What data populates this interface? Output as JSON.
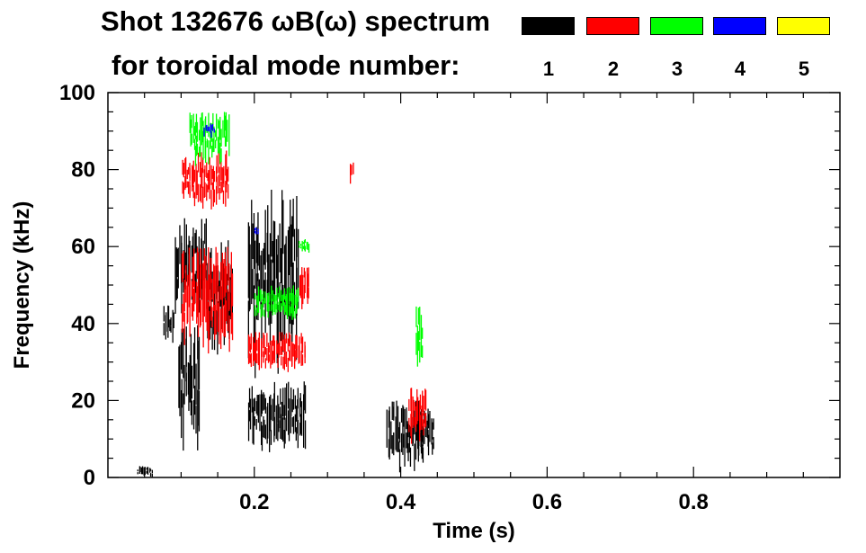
{
  "title": {
    "line1": "Shot 132676 ωB(ω) spectrum",
    "line2": "for toroidal mode number:"
  },
  "legend": [
    {
      "mode": "1",
      "color": "#000000"
    },
    {
      "mode": "2",
      "color": "#ff0000"
    },
    {
      "mode": "3",
      "color": "#00ff00"
    },
    {
      "mode": "4",
      "color": "#0000ff"
    },
    {
      "mode": "5",
      "color": "#ffff00"
    }
  ],
  "chart_data": {
    "type": "scatter",
    "title": "Shot 132676 ωB(ω) spectrum",
    "xlabel": "Time (s)",
    "ylabel": "Frequency (kHz)",
    "xlim": [
      0.0,
      1.0
    ],
    "ylim": [
      0,
      100
    ],
    "xticks": [
      0.2,
      0.4,
      0.6,
      0.8
    ],
    "xtick_labels": [
      "0.2",
      "0.4",
      "0.6",
      "0.8"
    ],
    "yticks": [
      0,
      20,
      40,
      60,
      80,
      100
    ],
    "ytick_labels": [
      "0",
      "20",
      "40",
      "60",
      "80",
      "100"
    ],
    "grid": false,
    "series": [
      {
        "name": "n=1",
        "color": "#000000",
        "regions": [
          {
            "t": [
              0.04,
              0.06
            ],
            "f": [
              0,
              3
            ]
          },
          {
            "t": [
              0.075,
              0.09
            ],
            "f": [
              33,
              45
            ]
          },
          {
            "t": [
              0.09,
              0.135
            ],
            "f": [
              40,
              68
            ]
          },
          {
            "t": [
              0.095,
              0.125
            ],
            "f": [
              5,
              40
            ]
          },
          {
            "t": [
              0.135,
              0.17
            ],
            "f": [
              30,
              62
            ]
          },
          {
            "t": [
              0.19,
              0.27
            ],
            "f": [
              5,
              25
            ]
          },
          {
            "t": [
              0.19,
              0.26
            ],
            "f": [
              25,
              75
            ]
          },
          {
            "t": [
              0.38,
              0.43
            ],
            "f": [
              0,
              20
            ]
          },
          {
            "t": [
              0.42,
              0.445
            ],
            "f": [
              3,
              18
            ]
          }
        ]
      },
      {
        "name": "n=2",
        "color": "#ff0000",
        "regions": [
          {
            "t": [
              0.1,
              0.165
            ],
            "f": [
              68,
              85
            ]
          },
          {
            "t": [
              0.1,
              0.17
            ],
            "f": [
              30,
              60
            ]
          },
          {
            "t": [
              0.19,
              0.27
            ],
            "f": [
              26,
              38
            ]
          },
          {
            "t": [
              0.26,
              0.275
            ],
            "f": [
              40,
              56
            ]
          },
          {
            "t": [
              0.33,
              0.335
            ],
            "f": [
              76,
              83
            ]
          },
          {
            "t": [
              0.41,
              0.435
            ],
            "f": [
              8,
              24
            ]
          }
        ]
      },
      {
        "name": "n=3",
        "color": "#00ff00",
        "regions": [
          {
            "t": [
              0.11,
              0.165
            ],
            "f": [
              80,
              95
            ]
          },
          {
            "t": [
              0.2,
              0.26
            ],
            "f": [
              40,
              50
            ]
          },
          {
            "t": [
              0.26,
              0.275
            ],
            "f": [
              58,
              62
            ]
          },
          {
            "t": [
              0.42,
              0.43
            ],
            "f": [
              26,
              45
            ]
          }
        ]
      },
      {
        "name": "n=4",
        "color": "#0000ff",
        "regions": [
          {
            "t": [
              0.13,
              0.145
            ],
            "f": [
              88,
              92
            ]
          },
          {
            "t": [
              0.2,
              0.205
            ],
            "f": [
              63,
              65
            ]
          }
        ]
      },
      {
        "name": "n=5",
        "color": "#ffff00",
        "regions": []
      }
    ]
  }
}
